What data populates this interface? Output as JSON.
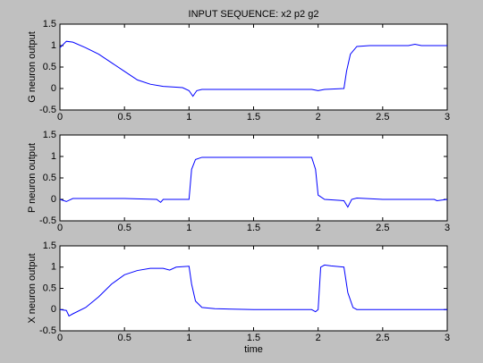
{
  "chart_data": [
    {
      "type": "line",
      "title": "INPUT SEQUENCE: x2 p2 g2",
      "ylabel": "G neuron output",
      "color": "#0000ff",
      "x": [
        0,
        0.05,
        0.1,
        0.2,
        0.3,
        0.4,
        0.5,
        0.6,
        0.7,
        0.8,
        0.9,
        0.95,
        1.0,
        1.03,
        1.06,
        1.1,
        1.5,
        1.95,
        2.0,
        2.05,
        2.2,
        2.22,
        2.25,
        2.3,
        2.4,
        2.7,
        2.75,
        2.8,
        3.0
      ],
      "values": [
        0.95,
        1.1,
        1.08,
        0.95,
        0.8,
        0.6,
        0.4,
        0.2,
        0.1,
        0.05,
        0.03,
        0.02,
        -0.05,
        -0.18,
        -0.05,
        -0.02,
        -0.02,
        -0.02,
        -0.05,
        -0.02,
        0.0,
        0.4,
        0.8,
        0.98,
        1.0,
        1.0,
        1.03,
        1.0,
        1.0
      ],
      "xlim": [
        0,
        3
      ],
      "ylim": [
        -0.5,
        1.5
      ],
      "xticks": [
        0,
        0.5,
        1,
        1.5,
        2,
        2.5,
        3
      ],
      "yticks": [
        -0.5,
        0,
        0.5,
        1,
        1.5
      ]
    },
    {
      "type": "line",
      "ylabel": "P neuron output",
      "color": "#0000ff",
      "x": [
        0,
        0.05,
        0.1,
        0.5,
        0.75,
        0.78,
        0.8,
        1.0,
        1.02,
        1.05,
        1.1,
        1.5,
        1.95,
        1.98,
        2.0,
        2.05,
        2.2,
        2.23,
        2.26,
        2.3,
        2.5,
        2.9,
        2.92,
        3.0
      ],
      "values": [
        0.0,
        -0.05,
        0.02,
        0.02,
        0.0,
        -0.07,
        0.0,
        0.0,
        0.7,
        0.93,
        0.98,
        0.98,
        0.98,
        0.7,
        0.1,
        0.0,
        -0.03,
        -0.18,
        0.0,
        0.03,
        0.0,
        0.0,
        -0.03,
        0.0
      ],
      "xlim": [
        0,
        3
      ],
      "ylim": [
        -0.5,
        1.5
      ],
      "xticks": [
        0,
        0.5,
        1,
        1.5,
        2,
        2.5,
        3
      ],
      "yticks": [
        -0.5,
        0,
        0.5,
        1,
        1.5
      ]
    },
    {
      "type": "line",
      "ylabel": "X neuron output",
      "xlabel": "time",
      "color": "#0000ff",
      "x": [
        0,
        0.05,
        0.07,
        0.1,
        0.2,
        0.3,
        0.4,
        0.5,
        0.6,
        0.7,
        0.8,
        0.85,
        0.9,
        1.0,
        1.02,
        1.05,
        1.1,
        1.2,
        1.5,
        1.95,
        1.98,
        2.0,
        2.02,
        2.05,
        2.1,
        2.2,
        2.23,
        2.27,
        2.3,
        2.5,
        3.0
      ],
      "values": [
        0.0,
        -0.02,
        -0.15,
        -0.1,
        0.05,
        0.3,
        0.6,
        0.82,
        0.92,
        0.97,
        0.97,
        0.93,
        1.0,
        1.02,
        0.6,
        0.2,
        0.05,
        0.02,
        0.0,
        0.0,
        -0.05,
        0.0,
        1.0,
        1.05,
        1.03,
        1.0,
        0.4,
        0.05,
        0.0,
        0.0,
        0.0
      ],
      "xlim": [
        0,
        3
      ],
      "ylim": [
        -0.5,
        1.5
      ],
      "xticks": [
        0,
        0.5,
        1,
        1.5,
        2,
        2.5,
        3
      ],
      "yticks": [
        -0.5,
        0,
        0.5,
        1,
        1.5
      ]
    }
  ]
}
